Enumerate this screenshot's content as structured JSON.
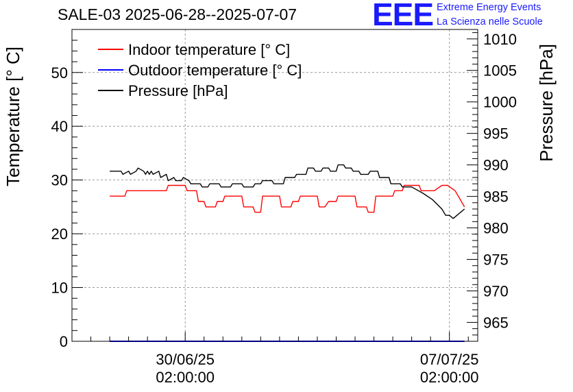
{
  "header": {
    "title": "SALE-03 2025-06-28--2025-07-07",
    "logo_text": "EEE",
    "logo_line1": "Extreme Energy Events",
    "logo_line2": "La Scienza nelle Scuole"
  },
  "colors": {
    "indoor": "#ff0000",
    "outdoor": "#0000ff",
    "pressure": "#000000",
    "grid": "#999999",
    "logo": "#1a1aff"
  },
  "chart_data": {
    "type": "line",
    "title": "SALE-03 2025-06-28--2025-07-07",
    "ylabel_left": "Temperature [° C]",
    "ylabel_right": "Pressure [hPa]",
    "ylim_left": [
      0,
      58
    ],
    "ylim_right": [
      962,
      1011.5
    ],
    "left_ticks": [
      0,
      10,
      20,
      30,
      40,
      50
    ],
    "right_ticks": [
      965,
      970,
      975,
      980,
      985,
      990,
      995,
      1000,
      1005,
      1010
    ],
    "x_ticks": [
      {
        "day": 2.0,
        "date": "30/06/25",
        "time": "02:00:00"
      },
      {
        "day": 9.0,
        "date": "07/07/25",
        "time": "02:00:00"
      }
    ],
    "xlim_days": [
      -1.0,
      9.75
    ],
    "grid": true,
    "legend_position": "top-left",
    "series": [
      {
        "name": "Indoor temperature [° C]",
        "axis": "left",
        "x": [
          0.0,
          0.4,
          0.45,
          1.0,
          1.5,
          1.55,
          2.0,
          2.05,
          2.3,
          2.35,
          2.5,
          2.55,
          2.8,
          2.85,
          3.0,
          3.05,
          3.5,
          3.55,
          3.8,
          3.85,
          4.0,
          4.05,
          4.5,
          4.55,
          4.8,
          4.85,
          5.0,
          5.05,
          5.5,
          5.55,
          5.7,
          5.8,
          6.0,
          6.05,
          6.5,
          6.55,
          6.8,
          6.85,
          7.0,
          7.05,
          7.5,
          7.55,
          7.75,
          7.8,
          8.2,
          8.25,
          8.6,
          8.8,
          8.95,
          9.15,
          9.4
        ],
        "values": [
          27,
          27,
          28,
          28,
          28,
          29,
          29,
          28,
          28,
          26,
          26,
          25,
          25,
          26,
          26,
          27,
          27,
          25,
          25,
          24,
          24,
          27,
          27,
          25,
          25,
          26,
          26,
          27,
          27,
          25,
          25,
          26,
          26,
          27,
          27,
          25,
          25,
          24,
          24,
          27,
          27,
          28,
          28,
          29,
          29,
          28,
          28,
          29,
          29,
          28,
          25
        ]
      },
      {
        "name": "Outdoor temperature [° C]",
        "axis": "left",
        "x": [
          0.0,
          9.4
        ],
        "values": [
          0,
          0
        ]
      },
      {
        "name": "Pressure [hPa]",
        "axis": "right",
        "x": [
          0.0,
          0.3,
          0.35,
          0.5,
          0.55,
          0.7,
          0.75,
          0.9,
          0.95,
          1.0,
          1.05,
          1.1,
          1.15,
          1.3,
          1.35,
          1.5,
          1.55,
          1.7,
          1.75,
          1.9,
          1.95,
          2.1,
          2.15,
          2.4,
          2.45,
          2.6,
          2.65,
          2.9,
          2.95,
          3.2,
          3.25,
          3.5,
          3.55,
          3.8,
          3.85,
          4.0,
          4.05,
          4.3,
          4.35,
          4.6,
          4.65,
          4.9,
          4.95,
          5.2,
          5.25,
          5.4,
          5.45,
          5.6,
          5.65,
          5.8,
          5.85,
          6.0,
          6.05,
          6.2,
          6.25,
          6.4,
          6.45,
          6.6,
          6.65,
          6.85,
          6.9,
          7.1,
          7.15,
          7.4,
          7.45,
          7.7,
          7.75,
          8.0,
          8.3,
          8.55,
          8.8,
          8.9,
          9.0,
          9.1,
          9.2,
          9.4
        ],
        "values": [
          989,
          989,
          988.5,
          989,
          988.5,
          989,
          989.5,
          989,
          988.5,
          989,
          988.5,
          989,
          988.5,
          989,
          988,
          988.5,
          987.5,
          988,
          987.5,
          987.5,
          988,
          987.5,
          987,
          987,
          986.5,
          986.5,
          987,
          987,
          986.5,
          986.5,
          987,
          987,
          986.5,
          986.5,
          987,
          987,
          987.5,
          987.5,
          987,
          987,
          988,
          988,
          988.5,
          988.5,
          989.5,
          989.5,
          989,
          989,
          989.5,
          989.5,
          989,
          989,
          990,
          990,
          989.5,
          989.5,
          989,
          989,
          988.5,
          988.5,
          989,
          989,
          988,
          988,
          987,
          987,
          986.5,
          986.5,
          985.5,
          984.5,
          983,
          982,
          982,
          981.5,
          982,
          983
        ]
      }
    ]
  }
}
